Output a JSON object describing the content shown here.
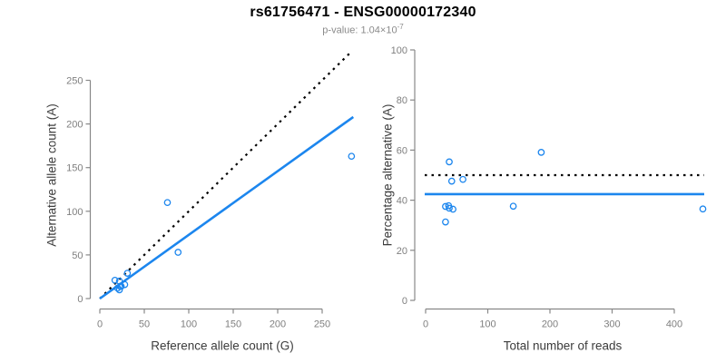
{
  "title": "rs61756471 - ENSG00000172340",
  "subtitle": {
    "text": "p-value: 1.04×10",
    "exponent": "-7"
  },
  "colors": {
    "accent_blue": "#1C86EE",
    "dotted_black": "#000000",
    "axis": "#888888",
    "tick_label": "#7f7f7f",
    "axis_title": "#3c3c3c",
    "subtitle_gray": "#8a8a8a"
  },
  "chart_data": [
    {
      "type": "scatter",
      "name": "allele-count-scatter",
      "xlabel": "Reference allele count (G)",
      "ylabel": "Alternative allele count (A)",
      "xlim": [
        0,
        285
      ],
      "ylim": [
        0,
        285
      ],
      "xticks": [
        0,
        50,
        100,
        150,
        200,
        250
      ],
      "yticks": [
        0,
        50,
        100,
        150,
        200,
        250
      ],
      "grid": false,
      "legend": "none",
      "points": [
        [
          17,
          21
        ],
        [
          22,
          20
        ],
        [
          31,
          29
        ],
        [
          20,
          12
        ],
        [
          23,
          14
        ],
        [
          28,
          16
        ],
        [
          24,
          14
        ],
        [
          22,
          10
        ],
        [
          88,
          53
        ],
        [
          76,
          110
        ],
        [
          283,
          163
        ]
      ],
      "lines": [
        {
          "name": "identity-line",
          "style": "dotted",
          "color": "#000000",
          "from": [
            0,
            0
          ],
          "to": [
            283,
            283
          ]
        },
        {
          "name": "fit-line",
          "style": "solid",
          "color": "#1C86EE",
          "from": [
            0,
            0
          ],
          "to": [
            285,
            208
          ]
        }
      ]
    },
    {
      "type": "scatter",
      "name": "percentage-scatter",
      "xlabel": "Total number of reads",
      "ylabel": "Percentage alternative (A)",
      "xlim": [
        0,
        460
      ],
      "ylim": [
        0,
        100
      ],
      "xticks": [
        0,
        100,
        200,
        300,
        400
      ],
      "yticks": [
        0,
        20,
        40,
        60,
        80,
        100
      ],
      "grid": false,
      "legend": "none",
      "points": [
        [
          38,
          55.3
        ],
        [
          42,
          47.6
        ],
        [
          60,
          48.3
        ],
        [
          32,
          37.5
        ],
        [
          37,
          37.8
        ],
        [
          44,
          36.4
        ],
        [
          38,
          36.8
        ],
        [
          32,
          31.3
        ],
        [
          141,
          37.6
        ],
        [
          186,
          59.1
        ],
        [
          446,
          36.5
        ]
      ],
      "lines": [
        {
          "name": "fifty-percent-line",
          "style": "dotted",
          "color": "#000000",
          "y": 50
        },
        {
          "name": "mean-percentage-line",
          "style": "solid",
          "color": "#1C86EE",
          "y": 42.4
        }
      ]
    }
  ]
}
